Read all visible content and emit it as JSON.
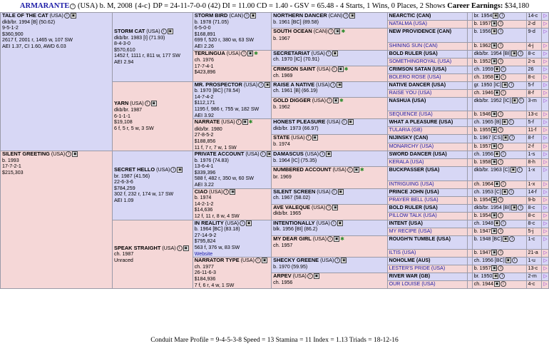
{
  "header": {
    "horse": "ARMARANTE",
    "rest": " (USA) b. M, 2008 {4-c} DP = 24-11-7-0-0 (42) DI = 11.00  CD = 1.40 - GSV = 65.48 - 4 Starts, 1 Wins, 0 Places, 2 Shows ",
    "earnings_label": "Career Earnings:",
    "earnings": " $34,180"
  },
  "gen1": {
    "sire": {
      "name": "TALE OF THE CAT",
      "tag": " (USA)",
      "l1": "dkb/br. 1994 [B] (50.62)",
      "l2": "9-5-1-2",
      "l3": "$360,900",
      "l4": "2617 f, 2001 r, 1465 w, 107 SW",
      "l5": "AEI 1.37, CI 1.60, AWD 6.03"
    },
    "dam": {
      "name": "SILENT GREETING",
      "tag": " (USA)",
      "l1": "b. 1993",
      "l2": "17-7-2-1",
      "l3": "$215,303"
    }
  },
  "gen2": [
    {
      "name": "STORM CAT",
      "tag": " (USA)",
      "l1": "dkb/br. 1983 [I] (71.93)",
      "l2": "8-4-3-0",
      "l3": "$570,610",
      "l4": "1452 f, 1111 r, 811 w, 177 SW",
      "l5": "AEI 2.94"
    },
    {
      "name": "YARN",
      "tag": " (USA)",
      "l1": "dkb/br. 1987",
      "l2": "6-1-1-1",
      "l3": "$19,108",
      "l4": "6 f, 5 r, 5 w, 3 SW"
    },
    {
      "name": "SECRET HELLO",
      "tag": " (USA)",
      "l1": "br. 1987 (41.56)",
      "l2": "22-6-3-6",
      "l3": "$784,259",
      "l4": "302 f, 232 r, 174 w, 17 SW",
      "l5": "AEI 1.09"
    },
    {
      "name": "SPEAK STRAIGHT",
      "tag": " (USA)",
      "l1": "ch. 1987",
      "l2": "Unraced"
    }
  ],
  "gen3": [
    {
      "name": "STORM BIRD",
      "tag": " (CAN)",
      "l1": "b. 1978 (71.05)",
      "l2": "6-5-0-0",
      "l3": "$168,891",
      "l4": "699 f, 520 r, 380 w, 63 SW",
      "l5": "AEI 2.26"
    },
    {
      "name": "TERLINGUA",
      "tag": " (USA)",
      "l1": "ch. 1976",
      "l2": "17-7-4-1",
      "l3": "$423,896"
    },
    {
      "name": "MR. PROSPECTOR",
      "tag": " (USA)",
      "l1": "b. 1970 [BC] (78.54)",
      "l2": "14-7-4-2",
      "l3": "$112,171",
      "l4": "1195 f, 986 r, 755 w, 182 SW",
      "l5": "AEI 3.92"
    },
    {
      "name": "NARRATE",
      "tag": " (USA)",
      "l1": "dkb/br. 1980",
      "l2": "27-8-5-2",
      "l3": "$188,856",
      "l4": "11 f, 7 r, 7 w, 1 SW"
    },
    {
      "name": "PRIVATE ACCOUNT",
      "tag": " (USA)",
      "l1": "b. 1976 (74.83)",
      "l2": "13-6-4-1",
      "l3": "$339,396",
      "l4": "588 f, 482 r, 350 w, 60 SW",
      "l5": "AEI 3.22"
    },
    {
      "name": "CIAO",
      "tag": " (USA)",
      "l1": "b. 1974",
      "l2": "14-2-1-2",
      "l3": "$14,636",
      "l4": "12 f, 11 r, 8 w, 4 SW"
    },
    {
      "name": "IN REALITY",
      "tag": " (USA)",
      "l1": "b. 1964 [BC] (83.18)",
      "l2": "27-14-9-2",
      "l3": "$795,824",
      "l4": "563 f, 376 w, 83 SW",
      "l5": "Website"
    },
    {
      "name": "NARRATOR TYPE",
      "tag": " (USA)",
      "l1": "ch. 1977",
      "l2": "26-11-6-3",
      "l3": "$184,936",
      "l4": "7 f, 6 r, 4 w, 1 SW"
    }
  ],
  "gen4": [
    {
      "name": "NORTHERN DANCER",
      "tag": " (CAN)",
      "l1": "b. 1961 [BC] (89.58)"
    },
    {
      "name": "SOUTH OCEAN",
      "tag": " (CAN)",
      "l1": "b. 1967"
    },
    {
      "name": "SECRETARIAT",
      "tag": " (USA)",
      "l1": "ch. 1970 [IC] (70.91)"
    },
    {
      "name": "CRIMSON SAINT",
      "tag": " (USA)",
      "l1": "ch. 1969"
    },
    {
      "name": "RAISE A NATIVE",
      "tag": " (USA)",
      "l1": "ch. 1961 [B] (66.19)"
    },
    {
      "name": "GOLD DIGGER",
      "tag": " (USA)",
      "l1": "b. 1962"
    },
    {
      "name": "HONEST PLEASURE",
      "tag": " (USA)",
      "l1": "dkb/br. 1973 (66.97)"
    },
    {
      "name": "STATE",
      "tag": " (USA)",
      "l1": "b. 1974"
    },
    {
      "name": "DAMASCUS",
      "tag": " (USA)",
      "l1": "b. 1964 [IC] (75.35)"
    },
    {
      "name": "NUMBERED ACCOUNT",
      "tag": " (USA)",
      "l1": "br. 1969"
    },
    {
      "name": "SILENT SCREEN",
      "tag": " (USA)",
      "l1": "ch. 1967 (58.02)"
    },
    {
      "name": "AVE VALEQUE",
      "tag": " (USA)",
      "l1": "dkb/br. 1965"
    },
    {
      "name": "INTENTIONALLY",
      "tag": " (USA)",
      "l1": "blk. 1956 [BI] (86.2)"
    },
    {
      "name": "MY DEAR GIRL",
      "tag": " (USA)",
      "l1": "ch. 1957"
    },
    {
      "name": "SHECKY GREENE",
      "tag": " (USA)",
      "l1": "b. 1970 (59.95)"
    },
    {
      "name": "ARPEV",
      "tag": " (USA)",
      "l1": "ch. 1956"
    }
  ],
  "gen5": [
    {
      "n": "NEARCTIC (CAN)",
      "d": "br. 1954",
      "x": "14-c"
    },
    {
      "n": "NATALMA (USA)",
      "d": "b. 1957",
      "x": "2-d"
    },
    {
      "n": "NEW PROVIDENCE (CAN)",
      "d": "b. 1956",
      "x": "9-d"
    },
    {
      "n": "SHINING SUN (CAN)",
      "d": "b. 1962",
      "x": "4-j"
    },
    {
      "n": "BOLD RULER (USA)",
      "d": "dkb/br. 1954 [BI]",
      "x": "8-c"
    },
    {
      "n": "SOMETHINGROYAL (USA)",
      "d": "b. 1952",
      "x": "2-s"
    },
    {
      "n": "CRIMSON SATAN (USA)",
      "d": "ch. 1959",
      "x": "26"
    },
    {
      "n": "BOLERO ROSE (USA)",
      "d": "ch. 1958",
      "x": "8-c"
    },
    {
      "n": "NATIVE DANCER (USA)",
      "d": "gr. 1950 [IC]",
      "x": "5-f"
    },
    {
      "n": "RAISE YOU (USA)",
      "d": "ch. 1946",
      "x": "8-f"
    },
    {
      "n": "NASHUA (USA)",
      "d": "dkb/br. 1952 [IC]",
      "x": "3-m"
    },
    {
      "n": "SEQUENCE (USA)",
      "d": "b. 1946",
      "x": "13-c"
    },
    {
      "n": "WHAT A PLEASURE (USA)",
      "d": "ch. 1965 [B]",
      "x": "5-f"
    },
    {
      "n": "TULARIA (GB)",
      "d": "b. 1955",
      "x": "11-f"
    },
    {
      "n": "NIJINSKY (CAN)",
      "d": "b. 1967 [CS]",
      "x": "8-f"
    },
    {
      "n": "MONARCHY (USA)",
      "d": "b. 1957",
      "x": "2-f"
    },
    {
      "n": "SWORD DANCER (USA)",
      "d": "ch. 1956",
      "x": "1-s"
    },
    {
      "n": "KERALA (USA)",
      "d": "b. 1958",
      "x": "8-h"
    },
    {
      "n": "BUCKPASSER (USA)",
      "d": "dkb/br. 1963 [C]",
      "x": "1-x"
    },
    {
      "n": "INTRIGUING (USA)",
      "d": "ch. 1964",
      "x": "1-x"
    },
    {
      "n": "PRINCE JOHN (USA)",
      "d": "ch. 1953 [C]",
      "x": "14-f"
    },
    {
      "n": "PRAYER BELL (USA)",
      "d": "b. 1954",
      "x": "9-b"
    },
    {
      "n": "BOLD RULER (USA)",
      "d": "dkb/br. 1954 [BI]",
      "x": "8-c"
    },
    {
      "n": "PILLOW TALK (USA)",
      "d": "b. 1954",
      "x": "8-c"
    },
    {
      "n": "INTENT (USA)",
      "d": "ch. 1948",
      "x": "8-c"
    },
    {
      "n": "MY RECIPE (USA)",
      "d": "b. 1947",
      "x": "5-j"
    },
    {
      "n": "ROUGH'N TUMBLE (USA)",
      "d": "b. 1948 [BC]",
      "x": "1-c"
    },
    {
      "n": "ILTIS (USA)",
      "d": "b. 1947",
      "x": "21-a"
    },
    {
      "n": "NOHOLME (AUS)",
      "d": "ch. 1956 [BC]",
      "x": "1-u"
    },
    {
      "n": "LESTER'S PRIDE (USA)",
      "d": "b. 1957",
      "x": "13-c"
    },
    {
      "n": "RIVER WAR (GB)",
      "d": "br. 1950",
      "x": "2-m"
    },
    {
      "n": "OUR LOUISE (USA)",
      "d": "ch. 1944",
      "x": "4-c"
    }
  ],
  "footer": "Conduit Mare Profile = 9-4-5-3-8   Speed = 13   Stamina = 11   Index = 1.13   Triads = 18-12-16",
  "icons": {
    "info": "i",
    "photo": "▣",
    "star": "✱",
    "arrow": "▷"
  }
}
